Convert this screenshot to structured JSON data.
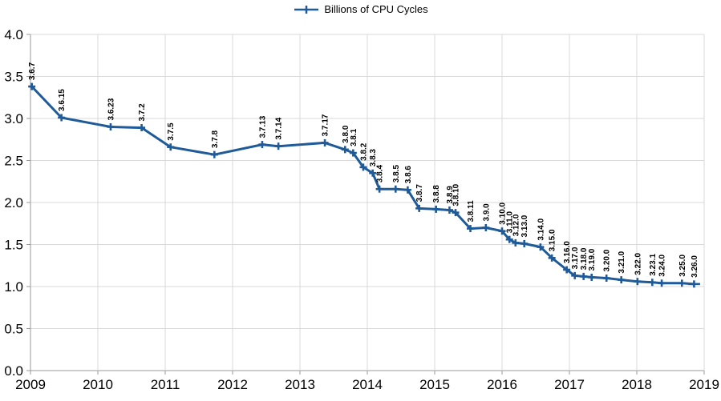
{
  "legend": {
    "position": "top-center"
  },
  "chart_data": {
    "type": "line",
    "series_name": "Billions of CPU Cycles",
    "title": "",
    "xlabel": "",
    "ylabel": "",
    "series_color": "#1f5b99",
    "gridline_color": "#d9d9d9",
    "axis_color": "#9a9a9a",
    "label_color": "#000000",
    "grid": true,
    "legend_position": "top-center",
    "xlim": [
      2009,
      2019
    ],
    "ylim": [
      0.0,
      4.0
    ],
    "x_ticks": [
      2009,
      2010,
      2011,
      2012,
      2013,
      2014,
      2015,
      2016,
      2017,
      2018,
      2019
    ],
    "y_tick_labels": [
      "0.0",
      "0.5",
      "1.0",
      "1.5",
      "2.0",
      "2.5",
      "3.0",
      "3.5",
      "4.0"
    ],
    "y_tick_values": [
      0.0,
      0.5,
      1.0,
      1.5,
      2.0,
      2.5,
      3.0,
      3.5,
      4.0
    ],
    "points": [
      {
        "label": "3.6.7",
        "x": 2009.02,
        "y": 3.38
      },
      {
        "label": "3.6.15",
        "x": 2009.46,
        "y": 3.01
      },
      {
        "label": "3.6.23",
        "x": 2010.19,
        "y": 2.9
      },
      {
        "label": "3.7.2",
        "x": 2010.65,
        "y": 2.89
      },
      {
        "label": "3.7.5",
        "x": 2011.08,
        "y": 2.66
      },
      {
        "label": "3.7.8",
        "x": 2011.73,
        "y": 2.57
      },
      {
        "label": "3.7.13",
        "x": 2012.44,
        "y": 2.69
      },
      {
        "label": "3.7.14",
        "x": 2012.68,
        "y": 2.67
      },
      {
        "label": "3.7.17",
        "x": 2013.37,
        "y": 2.71
      },
      {
        "label": "3.8.0",
        "x": 2013.67,
        "y": 2.63
      },
      {
        "label": "3.8.1",
        "x": 2013.79,
        "y": 2.59
      },
      {
        "label": "3.8.2",
        "x": 2013.94,
        "y": 2.42
      },
      {
        "label": "3.8.3",
        "x": 2014.08,
        "y": 2.35
      },
      {
        "label": "3.8.4",
        "x": 2014.18,
        "y": 2.16
      },
      {
        "label": "3.8.5",
        "x": 2014.42,
        "y": 2.16
      },
      {
        "label": "3.8.6",
        "x": 2014.6,
        "y": 2.15
      },
      {
        "label": "3.8.7",
        "x": 2014.77,
        "y": 1.93
      },
      {
        "label": "3.8.8",
        "x": 2015.02,
        "y": 1.92
      },
      {
        "label": "3.8.9",
        "x": 2015.22,
        "y": 1.91
      },
      {
        "label": "3.8.10",
        "x": 2015.31,
        "y": 1.88
      },
      {
        "label": "3.8.11",
        "x": 2015.53,
        "y": 1.69
      },
      {
        "label": "3.9.0",
        "x": 2015.76,
        "y": 1.7
      },
      {
        "label": "3.10.0",
        "x": 2016.0,
        "y": 1.66
      },
      {
        "label": "3.11.0",
        "x": 2016.11,
        "y": 1.56
      },
      {
        "label": "3.12.0",
        "x": 2016.2,
        "y": 1.52
      },
      {
        "label": "3.13.0",
        "x": 2016.33,
        "y": 1.51
      },
      {
        "label": "3.14.0",
        "x": 2016.57,
        "y": 1.47
      },
      {
        "label": "3.15.0",
        "x": 2016.74,
        "y": 1.34
      },
      {
        "label": "3.16.0",
        "x": 2016.96,
        "y": 1.2
      },
      {
        "label": "3.17.0",
        "x": 2017.08,
        "y": 1.13
      },
      {
        "label": "3.18.0",
        "x": 2017.21,
        "y": 1.12
      },
      {
        "label": "3.19.0",
        "x": 2017.33,
        "y": 1.11
      },
      {
        "label": "3.20.0",
        "x": 2017.55,
        "y": 1.1
      },
      {
        "label": "3.21.0",
        "x": 2017.77,
        "y": 1.08
      },
      {
        "label": "3.22.0",
        "x": 2018.01,
        "y": 1.06
      },
      {
        "label": "3.23.1",
        "x": 2018.23,
        "y": 1.05
      },
      {
        "label": "3.24.0",
        "x": 2018.37,
        "y": 1.04
      },
      {
        "label": "3.25.0",
        "x": 2018.67,
        "y": 1.04
      },
      {
        "label": "3.26.0",
        "x": 2018.85,
        "y": 1.03
      }
    ]
  }
}
